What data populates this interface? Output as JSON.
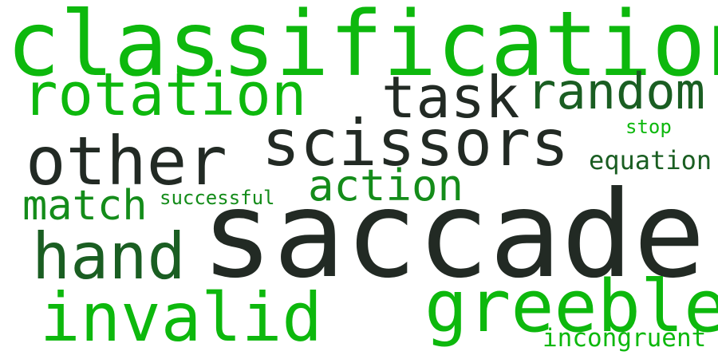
{
  "colors": {
    "bright_green": "#0db80d",
    "mid_green": "#148c1a",
    "deep_green": "#1a5e22",
    "dark_gray": "#222a24",
    "background": "#ffffff"
  },
  "words": {
    "classification": "classification",
    "rotation": "rotation",
    "task": "task",
    "random": "random",
    "scissors": "scissors",
    "stop": "stop",
    "other": "other",
    "equation": "equation",
    "action": "action",
    "match": "match",
    "successful": "successful",
    "saccade": "saccade",
    "hand": "hand",
    "greeble": "greeble",
    "invalid": "invalid",
    "incongruent": "incongruent"
  }
}
